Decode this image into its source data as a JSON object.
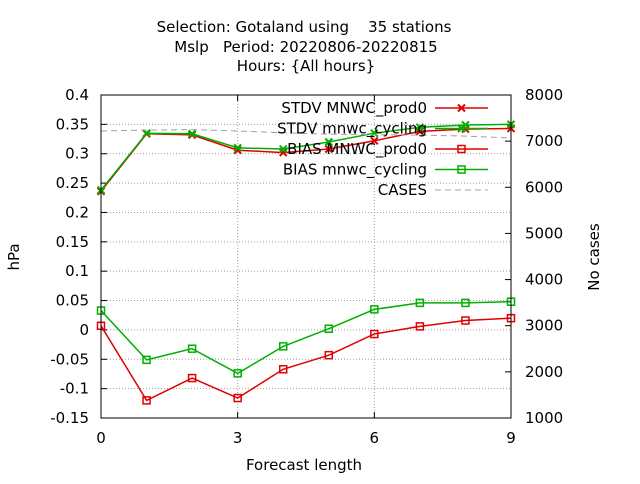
{
  "chart_data": {
    "type": "line",
    "title_lines": [
      "Selection: Gotaland using    35 stations",
      "Mslp   Period: 20220806-20220815",
      "Hours: {All hours}"
    ],
    "xlabel": "Forecast length",
    "ylabel": "hPa",
    "y2label": "No cases",
    "x": [
      0,
      1,
      2,
      3,
      4,
      5,
      6,
      7,
      8,
      9
    ],
    "xlim": [
      0,
      9
    ],
    "xticks": [
      0,
      3,
      6,
      9
    ],
    "ylim": [
      -0.15,
      0.4
    ],
    "yticks": [
      "-0.15",
      "-0.1",
      "-0.05",
      "0",
      "0.05",
      "0.1",
      "0.15",
      "0.2",
      "0.25",
      "0.3",
      "0.35",
      "0.4"
    ],
    "y2lim": [
      1000,
      8000
    ],
    "y2ticks": [
      "1000",
      "2000",
      "3000",
      "4000",
      "5000",
      "6000",
      "7000",
      "8000"
    ],
    "grid": true,
    "legend_position": "top-right",
    "series": [
      {
        "name": "STDV MNWC_prod0",
        "color": "#e00000",
        "marker": "x",
        "axis": "y",
        "values": [
          0.236,
          0.334,
          0.332,
          0.306,
          0.302,
          0.308,
          0.322,
          0.338,
          0.342,
          0.343
        ]
      },
      {
        "name": "STDV mnwc_cycling",
        "color": "#00b000",
        "marker": "x",
        "axis": "y",
        "values": [
          0.238,
          0.335,
          0.334,
          0.31,
          0.308,
          0.32,
          0.335,
          0.345,
          0.349,
          0.35
        ]
      },
      {
        "name": "BIAS MNWC_prod0",
        "color": "#e00000",
        "marker": "square",
        "axis": "y",
        "values": [
          0.007,
          -0.12,
          -0.082,
          -0.116,
          -0.067,
          -0.043,
          -0.007,
          0.006,
          0.016,
          0.02
        ]
      },
      {
        "name": "BIAS mnwc_cycling",
        "color": "#00b000",
        "marker": "square",
        "axis": "y",
        "values": [
          0.033,
          -0.051,
          -0.032,
          -0.074,
          -0.028,
          0.002,
          0.035,
          0.046,
          0.046,
          0.048
        ]
      },
      {
        "name": "CASES",
        "color": "#a0a0a0",
        "marker": "none",
        "dashed": true,
        "axis": "y2",
        "values": [
          7220,
          7240,
          7250,
          7220,
          7180,
          7150,
          7140,
          7130,
          7110,
          7070
        ]
      }
    ]
  }
}
